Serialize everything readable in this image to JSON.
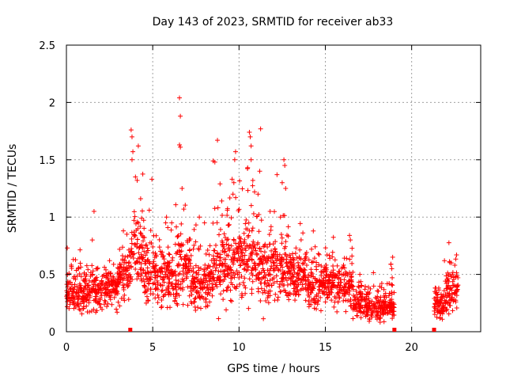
{
  "chart_data": {
    "type": "scatter",
    "title": "Day 143 of 2023, SRMTID for receiver ab33",
    "xlabel": "GPS time / hours",
    "ylabel": "SRMTID / TECUs",
    "xlim": [
      0,
      24
    ],
    "ylim": [
      0,
      2.5
    ],
    "xticks": [
      "0",
      "5",
      "10",
      "15",
      "20"
    ],
    "yticks": [
      "0",
      "0.5",
      "1",
      "1.5",
      "2",
      "2.5"
    ],
    "grid": true,
    "marker": "plus",
    "color": "#ff0000",
    "gaps_marked_at": [
      3.7,
      19.0,
      21.3
    ],
    "segments": [
      {
        "x_start": 0.0,
        "x_end": 1.0,
        "median": 0.33,
        "spread": 0.16,
        "outliers": [
          [
            0.05,
            0.73
          ],
          [
            0.4,
            0.63
          ]
        ]
      },
      {
        "x_start": 1.0,
        "x_end": 2.0,
        "median": 0.36,
        "spread": 0.16,
        "outliers": [
          [
            1.6,
            1.05
          ],
          [
            1.5,
            0.8
          ]
        ]
      },
      {
        "x_start": 2.0,
        "x_end": 3.0,
        "median": 0.38,
        "spread": 0.15,
        "outliers": [
          [
            2.5,
            0.62
          ]
        ]
      },
      {
        "x_start": 3.0,
        "x_end": 3.7,
        "median": 0.5,
        "spread": 0.18,
        "outliers": [
          [
            3.3,
            0.88
          ],
          [
            3.5,
            0.85
          ]
        ]
      },
      {
        "x_start": 3.7,
        "x_end": 4.5,
        "median": 0.7,
        "spread": 0.3,
        "outliers": [
          [
            3.75,
            1.76
          ],
          [
            3.8,
            1.7
          ],
          [
            3.8,
            1.5
          ],
          [
            3.85,
            1.57
          ],
          [
            4.1,
            1.32
          ],
          [
            4.0,
            1.35
          ]
        ]
      },
      {
        "x_start": 4.5,
        "x_end": 5.5,
        "median": 0.5,
        "spread": 0.22,
        "outliers": [
          [
            4.95,
            1.33
          ],
          [
            4.8,
            1.06
          ],
          [
            4.3,
            1.16
          ]
        ]
      },
      {
        "x_start": 5.5,
        "x_end": 6.4,
        "median": 0.46,
        "spread": 0.22,
        "outliers": [
          [
            5.8,
            1.0
          ],
          [
            6.1,
            0.95
          ]
        ]
      },
      {
        "x_start": 6.4,
        "x_end": 7.2,
        "median": 0.6,
        "spread": 0.26,
        "outliers": [
          [
            6.55,
            2.04
          ],
          [
            6.6,
            1.88
          ],
          [
            6.55,
            1.63
          ],
          [
            6.6,
            1.61
          ],
          [
            6.7,
            1.25
          ],
          [
            6.8,
            1.07
          ]
        ]
      },
      {
        "x_start": 7.2,
        "x_end": 8.2,
        "median": 0.42,
        "spread": 0.2,
        "outliers": [
          [
            7.7,
            1.0
          ],
          [
            8.0,
            0.95
          ]
        ]
      },
      {
        "x_start": 8.2,
        "x_end": 9.2,
        "median": 0.55,
        "spread": 0.26,
        "outliers": [
          [
            8.75,
            1.67
          ],
          [
            8.6,
            1.48
          ],
          [
            8.5,
            1.49
          ],
          [
            8.9,
            1.29
          ],
          [
            9.0,
            1.14
          ]
        ]
      },
      {
        "x_start": 9.2,
        "x_end": 10.0,
        "median": 0.6,
        "spread": 0.3,
        "outliers": [
          [
            9.8,
            1.57
          ],
          [
            9.75,
            1.5
          ],
          [
            9.7,
            1.3
          ],
          [
            9.6,
            1.33
          ],
          [
            9.65,
            1.2
          ]
        ]
      },
      {
        "x_start": 10.0,
        "x_end": 11.0,
        "median": 0.62,
        "spread": 0.3,
        "outliers": [
          [
            10.6,
            1.74
          ],
          [
            10.65,
            1.7
          ],
          [
            10.7,
            1.62
          ],
          [
            10.7,
            1.5
          ],
          [
            10.5,
            1.43
          ],
          [
            10.8,
            1.32
          ],
          [
            10.9,
            1.22
          ]
        ]
      },
      {
        "x_start": 11.0,
        "x_end": 12.0,
        "median": 0.55,
        "spread": 0.25,
        "outliers": [
          [
            11.25,
            1.77
          ],
          [
            11.2,
            1.4
          ],
          [
            11.1,
            1.2
          ],
          [
            11.8,
            1.05
          ]
        ]
      },
      {
        "x_start": 12.0,
        "x_end": 13.0,
        "median": 0.52,
        "spread": 0.24,
        "outliers": [
          [
            12.2,
            1.37
          ],
          [
            12.6,
            1.5
          ],
          [
            12.65,
            1.45
          ],
          [
            12.5,
            1.3
          ],
          [
            12.7,
            1.25
          ],
          [
            12.4,
            1.0
          ]
        ]
      },
      {
        "x_start": 13.0,
        "x_end": 14.0,
        "median": 0.5,
        "spread": 0.2,
        "outliers": [
          [
            13.3,
            0.73
          ],
          [
            13.1,
            0.68
          ]
        ]
      },
      {
        "x_start": 14.0,
        "x_end": 15.0,
        "median": 0.4,
        "spread": 0.18,
        "outliers": [
          [
            14.2,
            0.72
          ],
          [
            14.6,
            0.68
          ]
        ]
      },
      {
        "x_start": 15.0,
        "x_end": 16.0,
        "median": 0.42,
        "spread": 0.16,
        "outliers": [
          [
            15.1,
            0.67
          ]
        ]
      },
      {
        "x_start": 16.0,
        "x_end": 16.6,
        "median": 0.42,
        "spread": 0.18,
        "outliers": [
          [
            16.4,
            0.84
          ],
          [
            16.45,
            0.8
          ]
        ]
      },
      {
        "x_start": 16.6,
        "x_end": 17.5,
        "median": 0.25,
        "spread": 0.12,
        "outliers": [
          [
            17.0,
            0.5
          ]
        ]
      },
      {
        "x_start": 17.5,
        "x_end": 19.0,
        "median": 0.22,
        "spread": 0.11,
        "outliers": [
          [
            18.9,
            0.65
          ],
          [
            18.8,
            0.59
          ],
          [
            18.85,
            0.55
          ]
        ]
      },
      {
        "x_start": 21.3,
        "x_end": 22.0,
        "median": 0.24,
        "spread": 0.1,
        "outliers": [
          [
            21.4,
            0.38
          ],
          [
            21.9,
            0.62
          ]
        ]
      },
      {
        "x_start": 22.0,
        "x_end": 22.7,
        "median": 0.35,
        "spread": 0.14,
        "outliers": [
          [
            22.3,
            0.6
          ],
          [
            22.6,
            0.67
          ],
          [
            22.5,
            0.58
          ]
        ]
      }
    ]
  }
}
